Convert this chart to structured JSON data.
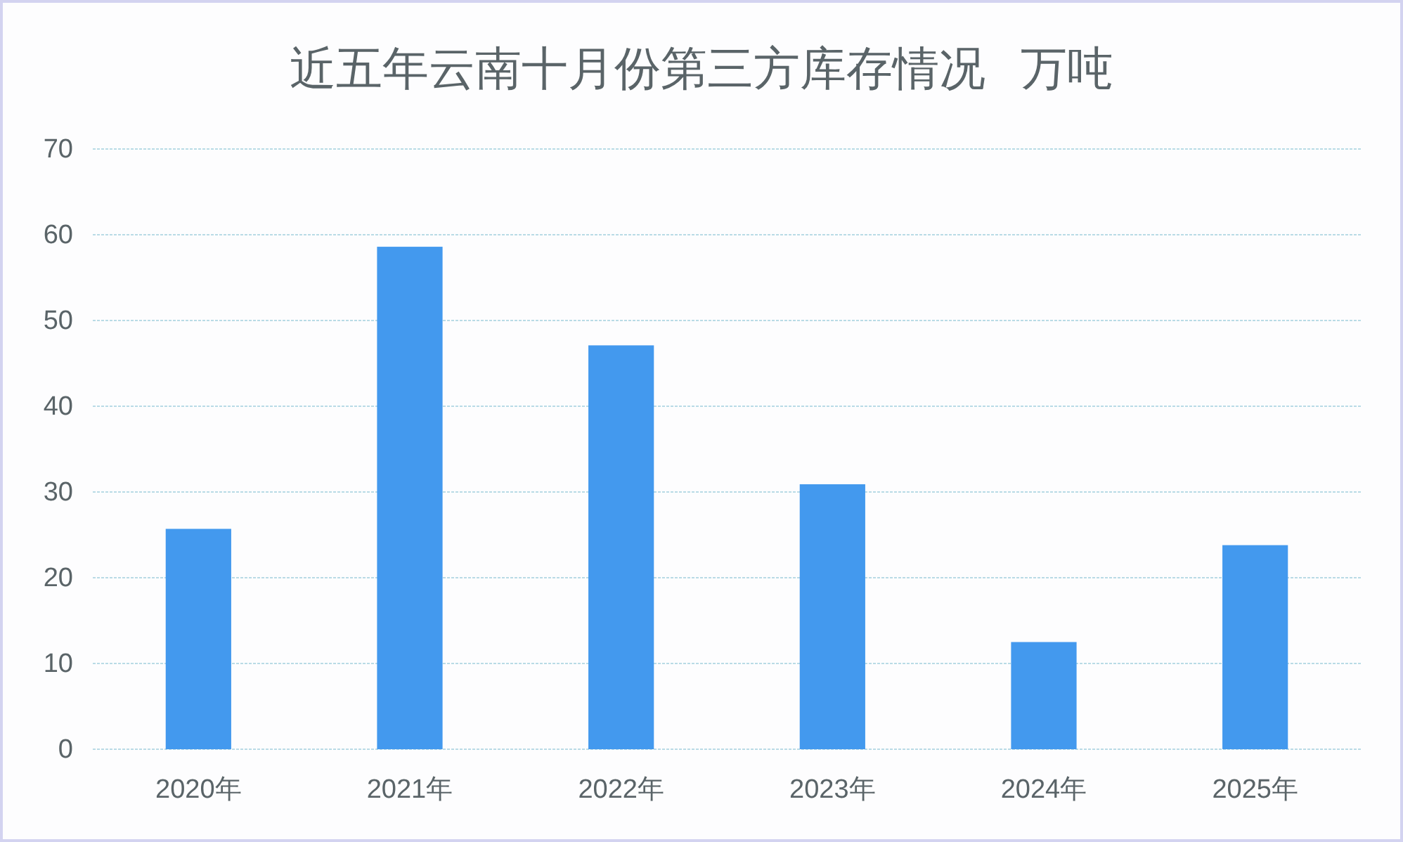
{
  "chart_data": {
    "type": "bar",
    "title": "近五年云南十月份第三方库存情况   万吨",
    "categories": [
      "2020年",
      "2021年",
      "2022年",
      "2023年",
      "2024年",
      "2025年"
    ],
    "values": [
      25.7,
      58.6,
      47.1,
      30.9,
      12.5,
      23.8
    ],
    "color": "#4399ee",
    "ylim": [
      0,
      70
    ],
    "yticks": [
      0,
      10,
      20,
      30,
      40,
      50,
      60,
      70
    ],
    "grid": "y",
    "legend": false
  }
}
